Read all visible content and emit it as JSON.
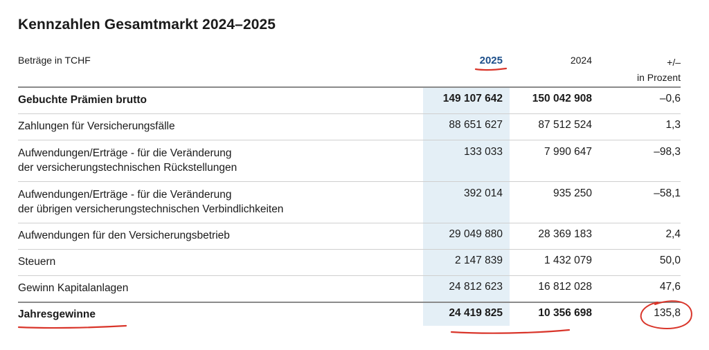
{
  "title": "Kennzahlen Gesamtmarkt 2024–2025",
  "header": {
    "amounts_label": "Beträge in TCHF",
    "col_2025": "2025",
    "col_2024": "2024",
    "col_change_line1": "+/–",
    "col_change_line2": "in Prozent"
  },
  "rows": [
    {
      "label_lines": [
        "Gebuchte Prämien brutto"
      ],
      "v2025": "149 107 642",
      "v2024": "150 042 908",
      "pct": "–0,6",
      "bold": true
    },
    {
      "label_lines": [
        "Zahlungen für Versicherungsfälle"
      ],
      "v2025": "88 651 627",
      "v2024": "87 512 524",
      "pct": "1,3",
      "bold": false
    },
    {
      "label_lines": [
        "Aufwendungen/Erträge - für die Veränderung",
        "der versicherungstechnischen Rückstellungen"
      ],
      "v2025": "133 033",
      "v2024": "7 990 647",
      "pct": "–98,3",
      "bold": false
    },
    {
      "label_lines": [
        "Aufwendungen/Erträge - für die Veränderung",
        "der übrigen versicherungstechnischen Verbindlichkeiten"
      ],
      "v2025": "392 014",
      "v2024": "935 250",
      "pct": "–58,1",
      "bold": false
    },
    {
      "label_lines": [
        "Aufwendungen für den Versicherungsbetrieb"
      ],
      "v2025": "29 049 880",
      "v2024": "28 369 183",
      "pct": "2,4",
      "bold": false
    },
    {
      "label_lines": [
        "Steuern"
      ],
      "v2025": "2 147 839",
      "v2024": "1 432 079",
      "pct": "50,0",
      "bold": false
    },
    {
      "label_lines": [
        "Gewinn Kapitalanlagen"
      ],
      "v2025": "24 812 623",
      "v2024": "16 812 028",
      "pct": "47,6",
      "bold": false
    },
    {
      "label_lines": [
        "Jahresgewinne"
      ],
      "v2025": "24 419 825",
      "v2024": "10 356 698",
      "pct": "135,8",
      "bold": true
    }
  ],
  "colors": {
    "highlight_column": "#e4eff6",
    "year_2025_text": "#1d4f8a",
    "annotation_red": "#d9352a"
  }
}
